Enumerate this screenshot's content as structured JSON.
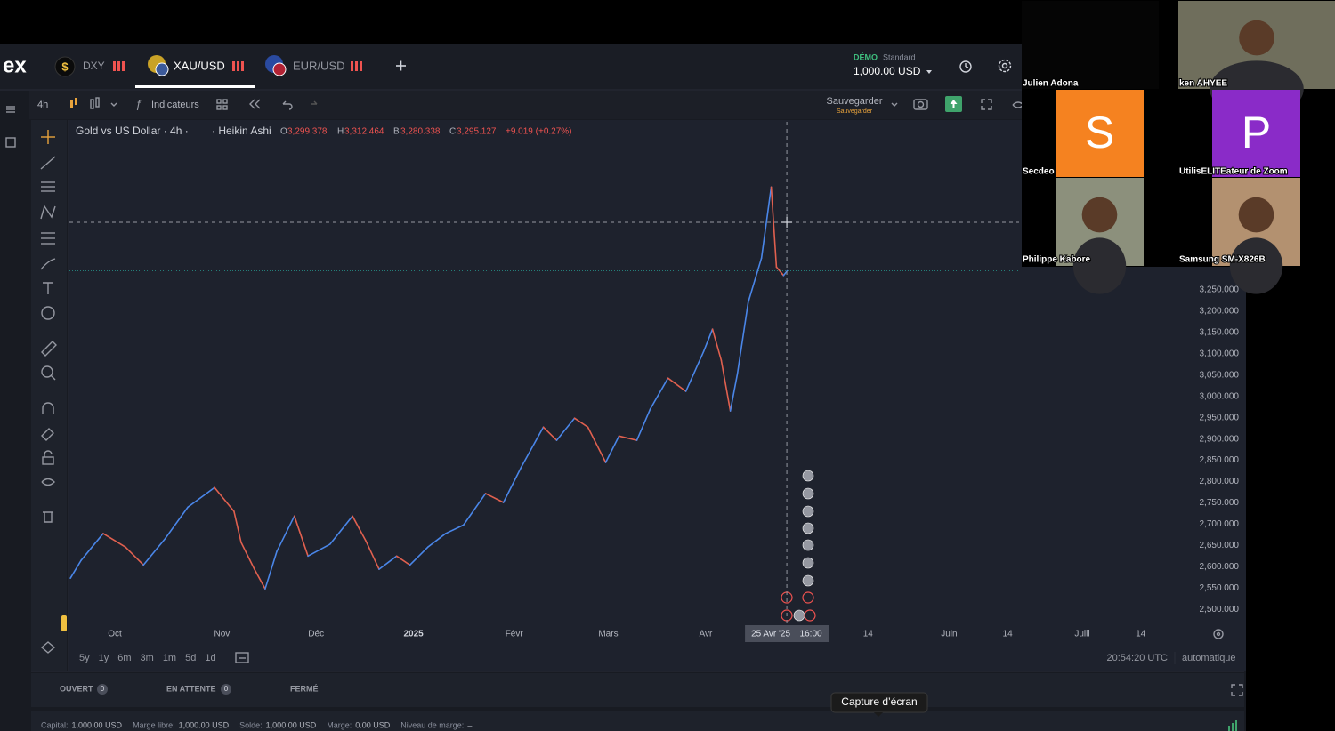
{
  "header": {
    "logo": "ex",
    "tabs": [
      {
        "label": "DXY",
        "icon": "$"
      },
      {
        "label": "XAU/USD"
      },
      {
        "label": "EUR/USD"
      }
    ],
    "account_type": "DÉMO",
    "account_plan": "Standard",
    "balance": "1,000.00 USD"
  },
  "toolbar": {
    "interval": "4h",
    "indicators": "Indicateurs",
    "save": "Sauvegarder",
    "save_status": "Sauvegarder"
  },
  "chart_data": {
    "type": "line",
    "title": "Gold vs US Dollar · 4h ·",
    "chart_style": "· Heikin Ashi",
    "ohlc": [
      {
        "label": "O",
        "value": "3,299.378"
      },
      {
        "label": "H",
        "value": "3,312.464"
      },
      {
        "label": "B",
        "value": "3,280.338"
      },
      {
        "label": "C",
        "value": "3,295.127"
      }
    ],
    "change": "+9.019 (+0.27%)",
    "x": [
      16.3,
      19.6,
      26.4,
      33.3,
      38.8,
      45.6,
      52.5,
      60.7,
      66.7,
      68.9,
      73,
      76.3,
      79.9,
      85.3,
      89.5,
      96.3,
      103.2,
      107.3,
      111.4,
      116.8,
      120.9,
      126.4,
      131.9,
      137.4,
      144.2,
      149.7,
      155.2,
      162,
      166.1,
      171.6,
      175.7,
      181.2,
      185.3,
      190.8,
      194.9,
      200.4,
      205.9,
      211.4,
      214.1,
      216.8,
      219.6,
      221.8,
      225.1,
      229.2,
      232.2,
      233.8,
      236,
      237.1
    ],
    "values": [
      2573,
      2615,
      2678,
      2646,
      2604,
      2667,
      2740,
      2786,
      2730,
      2657,
      2594,
      2548,
      2636,
      2719,
      2625,
      2653,
      2719,
      2661,
      2594,
      2625,
      2604,
      2646,
      2678,
      2698,
      2772,
      2751,
      2834,
      2928,
      2897,
      2949,
      2928,
      2845,
      2907,
      2897,
      2970,
      3043,
      3012,
      3106,
      3158,
      3085,
      2966,
      3054,
      3221,
      3325,
      3492,
      3304,
      3284,
      3295
    ],
    "up_color": "#4a86e8",
    "down_color": "#e0604f",
    "xlim": [
      16,
      362
    ],
    "ylim": [
      2469,
      3645
    ],
    "xticks": [
      {
        "value": 30,
        "label": "Oct"
      },
      {
        "value": 63,
        "label": "Nov"
      },
      {
        "value": 92,
        "label": "Déc"
      },
      {
        "value": 122,
        "label": "2025"
      },
      {
        "value": 153,
        "label": "Févr"
      },
      {
        "value": 182,
        "label": "Mars"
      },
      {
        "value": 212,
        "label": "Avr"
      },
      {
        "value": 262,
        "label": "14"
      },
      {
        "value": 287,
        "label": "Juin"
      },
      {
        "value": 305,
        "label": "14"
      },
      {
        "value": 328,
        "label": "Juill"
      },
      {
        "value": 346,
        "label": "14"
      }
    ],
    "yticks": [
      {
        "value": 2500,
        "label": "2,500.000"
      },
      {
        "value": 2550,
        "label": "2,550.000"
      },
      {
        "value": 2600,
        "label": "2,600.000"
      },
      {
        "value": 2650,
        "label": "2,650.000"
      },
      {
        "value": 2700,
        "label": "2,700.000"
      },
      {
        "value": 2750,
        "label": "2,750.000"
      },
      {
        "value": 2800,
        "label": "2,800.000"
      },
      {
        "value": 2850,
        "label": "2,850.000"
      },
      {
        "value": 2900,
        "label": "2,900.000"
      },
      {
        "value": 2950,
        "label": "2,950.000"
      },
      {
        "value": 3000,
        "label": "3,000.000"
      },
      {
        "value": 3050,
        "label": "3,050.000"
      },
      {
        "value": 3100,
        "label": "3,100.000"
      },
      {
        "value": 3150,
        "label": "3,150.000"
      },
      {
        "value": 3200,
        "label": "3,200.000"
      },
      {
        "value": 3250,
        "label": "3,250.000"
      }
    ],
    "grid": false,
    "crosshair": {
      "x": 237,
      "y": 3409,
      "date_label": "25 Avr '25",
      "time_label": "16:00"
    }
  },
  "timeframes": [
    "5y",
    "1y",
    "6m",
    "3m",
    "1m",
    "5d",
    "1d"
  ],
  "clock": "20:54:20 UTC",
  "scale_mode": "automatique",
  "positions_tabs": [
    {
      "label": "OUVERT",
      "count": "0"
    },
    {
      "label": "EN ATTENTE",
      "count": "0"
    },
    {
      "label": "FERMÉ"
    }
  ],
  "tooltip": "Capture d’écran",
  "account_summary": [
    {
      "label": "Capital:",
      "value": "1,000.00 USD"
    },
    {
      "label": "Marge libre:",
      "value": "1,000.00 USD"
    },
    {
      "label": "Solde:",
      "value": "1,000.00 USD"
    },
    {
      "label": "Marge:",
      "value": "0.00 USD"
    },
    {
      "label": "Niveau de marge:",
      "value": "–"
    }
  ],
  "participants": [
    {
      "name": "Julien Adona"
    },
    {
      "name": "ken AHYEE"
    },
    {
      "name": "Secdeo",
      "initial": "S",
      "color": "#f58220"
    },
    {
      "name": "UtilisELITEateur de Zoom",
      "initial": "P",
      "color": "#8a2bc8"
    },
    {
      "name": "Philippe Kabore"
    },
    {
      "name": "Samsung SM-X826B"
    }
  ]
}
